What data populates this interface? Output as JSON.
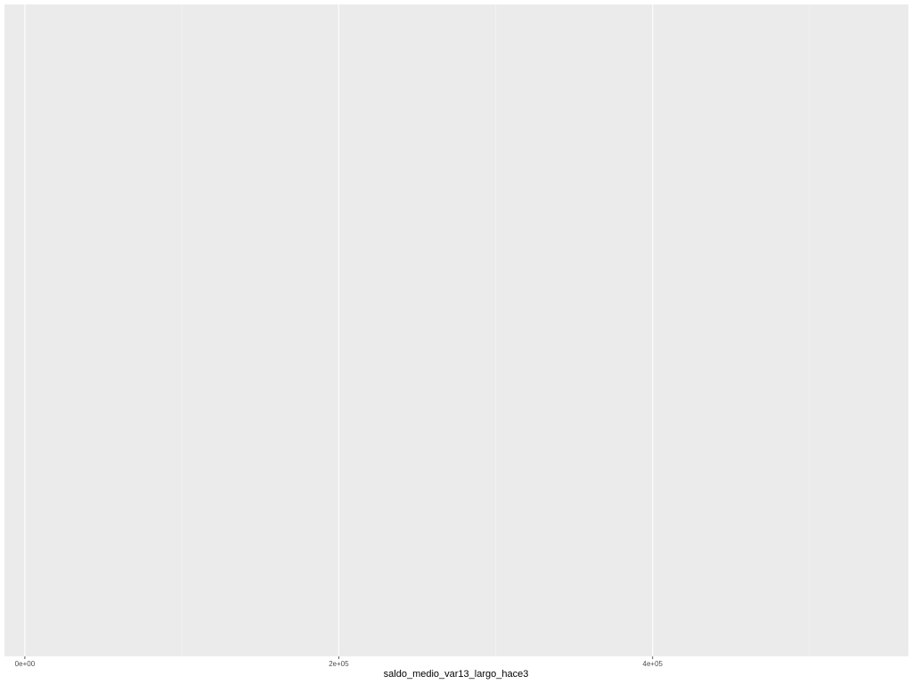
{
  "chart_data": {
    "type": "bar",
    "title": "",
    "xlabel": "saldo_medio_var13_largo_hace3",
    "ylabel": "",
    "xlim": [
      -13000,
      563000
    ],
    "x_ticks": [
      {
        "value": 0,
        "label": "0e+00"
      },
      {
        "value": 200000,
        "label": "2e+05"
      },
      {
        "value": 400000,
        "label": "4e+05"
      }
    ],
    "x_minor_ticks": [
      100000,
      300000,
      500000
    ],
    "y_ticks": [],
    "series": [],
    "grid": true,
    "legend": "none",
    "colors": {
      "panel_background": "#ebebeb",
      "grid_major": "#ffffff",
      "grid_minor": "#f5f5f5",
      "tick_mark": "#333333",
      "tick_label": "#4d4d4d",
      "axis_title": "#000000"
    }
  }
}
